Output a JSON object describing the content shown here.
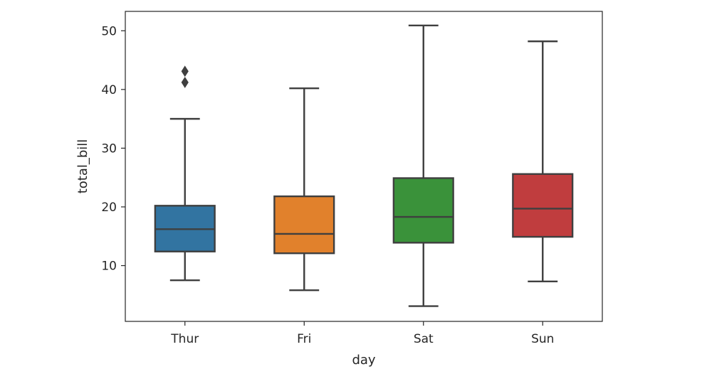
{
  "chart_data": {
    "type": "box",
    "title": "",
    "xlabel": "day",
    "ylabel": "total_bill",
    "categories": [
      "Thur",
      "Fri",
      "Sat",
      "Sun"
    ],
    "ylim": [
      0.5,
      53.3
    ],
    "yticks": [
      10,
      20,
      30,
      40,
      50
    ],
    "grid": false,
    "legend": "none",
    "boxes": [
      {
        "category": "Thur",
        "whisker_low": 7.5,
        "q1": 12.4,
        "median": 16.2,
        "q3": 20.2,
        "whisker_high": 35.0,
        "outliers": [
          41.2,
          43.1
        ],
        "color": "#3274a1"
      },
      {
        "category": "Fri",
        "whisker_low": 5.8,
        "q1": 12.1,
        "median": 15.4,
        "q3": 21.8,
        "whisker_high": 40.2,
        "outliers": [],
        "color": "#e1812c"
      },
      {
        "category": "Sat",
        "whisker_low": 3.1,
        "q1": 13.9,
        "median": 18.3,
        "q3": 24.9,
        "whisker_high": 50.9,
        "outliers": [],
        "color": "#3a923a"
      },
      {
        "category": "Sun",
        "whisker_low": 7.3,
        "q1": 14.9,
        "median": 19.7,
        "q3": 25.6,
        "whisker_high": 48.2,
        "outliers": [],
        "color": "#c03d3e"
      }
    ],
    "line_color": "#3f3f3f",
    "frame_color": "#262626"
  }
}
